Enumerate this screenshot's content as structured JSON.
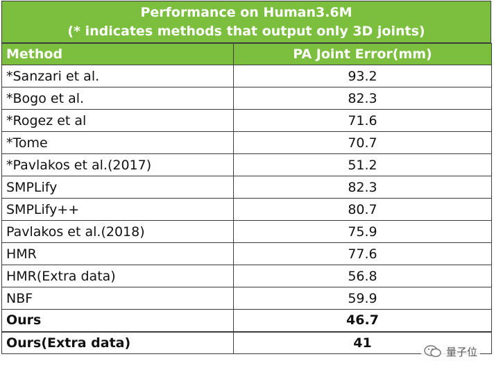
{
  "title": {
    "line1": "Performance on Human3.6M",
    "line2": "(* indicates methods that output only 3D joints)"
  },
  "table": {
    "headers": [
      "Method",
      "PA Joint Error(mm)"
    ],
    "rows": [
      {
        "method": "*Sanzari et al.",
        "value": "93.2"
      },
      {
        "method": "*Bogo et al.",
        "value": "82.3"
      },
      {
        "method": "*Rogez et al",
        "value": "71.6"
      },
      {
        "method": "*Tome",
        "value": "70.7"
      },
      {
        "method": "*Pavlakos et al.(2017)",
        "value": "51.2"
      },
      {
        "method": "SMPLify",
        "value": "82.3"
      },
      {
        "method": "SMPLify++",
        "value": "80.7"
      },
      {
        "method": "Pavlakos et al.(2018)",
        "value": "75.9"
      },
      {
        "method": "HMR",
        "value": "77.6"
      },
      {
        "method": "HMR(Extra data)",
        "value": "56.8"
      },
      {
        "method": "NBF",
        "value": "59.9"
      },
      {
        "method": "Ours",
        "value": "46.7"
      },
      {
        "method": "Ours(Extra data)",
        "value": "41"
      }
    ]
  },
  "watermark": {
    "text": "量子位",
    "icon": "wechat-icon"
  },
  "colors": {
    "header_bg": "#7cbf3f",
    "header_text": "#ffffff",
    "border": "#3c3c3c"
  }
}
